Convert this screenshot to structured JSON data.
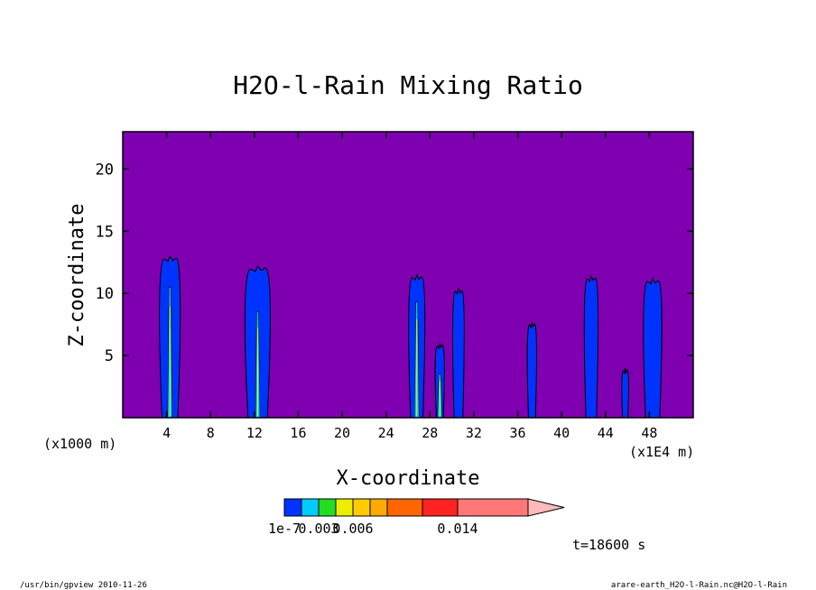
{
  "chart_data": {
    "type": "heatmap",
    "title": "H2O-l-Rain Mixing Ratio",
    "xlabel": "X-coordinate",
    "ylabel": "Z-coordinate",
    "x_unit_left": "(x1000 m)",
    "x_unit_right": "(x1E4 m)",
    "xlim": [
      0,
      52
    ],
    "ylim": [
      0,
      23
    ],
    "x_ticks": [
      4,
      8,
      12,
      16,
      20,
      24,
      28,
      32,
      36,
      40,
      44,
      48
    ],
    "y_ticks": [
      5,
      10,
      15,
      20
    ],
    "background_color": "#7f00b0",
    "contour_levels": [
      1e-07,
      0.0015,
      0.003,
      0.0045,
      0.006,
      0.0075,
      0.009,
      0.011,
      0.014
    ],
    "colorbar_labels": [
      {
        "text": "1e-7",
        "index": 0
      },
      {
        "text": "0.003",
        "index": 2
      },
      {
        "text": "0.006",
        "index": 4
      },
      {
        "text": "0.014",
        "index": 8
      }
    ],
    "colorbar_colors": [
      "#0033ff",
      "#00ccff",
      "#22dd22",
      "#eeee00",
      "#ffcc00",
      "#ffaa00",
      "#ff6600",
      "#ff2222",
      "#ff7777",
      "#ffbbbb"
    ],
    "plumes": [
      {
        "x": 4.3,
        "top": 13.0,
        "half_width": 0.9,
        "core_top": 10.5,
        "core_color": "#00ccff"
      },
      {
        "x": 12.3,
        "top": 12.2,
        "half_width": 1.1,
        "core_top": 8.5,
        "core_color": "#00ccff"
      },
      {
        "x": 26.8,
        "top": 11.5,
        "half_width": 0.7,
        "core_top": 9.3,
        "core_color": "#00ccff"
      },
      {
        "x": 28.9,
        "top": 6.0,
        "half_width": 0.4,
        "core_top": 3.5,
        "core_color": "#00ccff"
      },
      {
        "x": 30.6,
        "top": 10.4,
        "half_width": 0.5,
        "core_top": 0,
        "core_color": ""
      },
      {
        "x": 37.3,
        "top": 7.7,
        "half_width": 0.4,
        "core_top": 0,
        "core_color": ""
      },
      {
        "x": 42.7,
        "top": 11.4,
        "half_width": 0.6,
        "core_top": 0,
        "core_color": ""
      },
      {
        "x": 45.8,
        "top": 4.0,
        "half_width": 0.3,
        "core_top": 0,
        "core_color": ""
      },
      {
        "x": 48.3,
        "top": 11.2,
        "half_width": 0.8,
        "core_top": 0,
        "core_color": ""
      }
    ]
  },
  "time_label": "t=18600 s",
  "footer_left": "/usr/bin/gpview  2010-11-26",
  "footer_right": "arare-earth_H2O-l-Rain.nc@H2O-l-Rain"
}
